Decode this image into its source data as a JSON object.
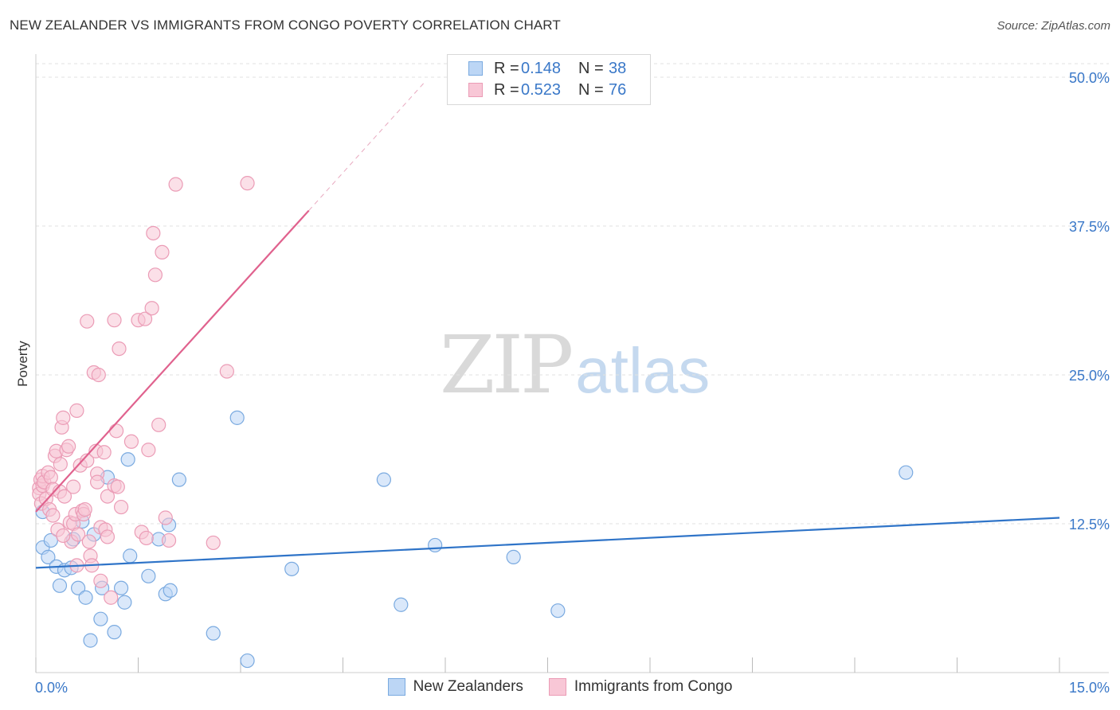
{
  "title": "NEW ZEALANDER VS IMMIGRANTS FROM CONGO POVERTY CORRELATION CHART",
  "source": "Source: ZipAtlas.com",
  "watermark": {
    "left": "ZIP",
    "right": "atlas"
  },
  "legend_top": {
    "rows": [
      {
        "r_label": "R =",
        "r_value": "0.148",
        "n_label": "N =",
        "n_value": "38"
      },
      {
        "r_label": "R =",
        "r_value": "0.523",
        "n_label": "N =",
        "n_value": "76"
      }
    ]
  },
  "legend_bottom": [
    "New Zealanders",
    "Immigrants from Congo"
  ],
  "colors": {
    "blue_fill": "#bcd6f5",
    "blue_stroke": "#7aaae0",
    "blue_line": "#2f74c8",
    "pink_fill": "#f8c7d6",
    "pink_stroke": "#eb9cb6",
    "pink_line": "#e0628e",
    "grid": "#e2e2e2",
    "tick_label": "#3a78c8"
  },
  "chart_data": {
    "type": "scatter",
    "title": "NEW ZEALANDER VS IMMIGRANTS FROM CONGO POVERTY CORRELATION CHART",
    "xlabel": "",
    "ylabel": "Poverty",
    "xlim": [
      0,
      15
    ],
    "ylim": [
      0,
      50
    ],
    "x_tick_labels": [
      "0.0%",
      "15.0%"
    ],
    "y_ticks": [
      12.5,
      25.0,
      37.5,
      50.0
    ],
    "y_tick_labels": [
      "12.5%",
      "25.0%",
      "37.5%",
      "50.0%"
    ],
    "grid": true,
    "legend_position": "bottom",
    "series": [
      {
        "name": "New Zealanders",
        "R": 0.148,
        "N": 38,
        "trend": {
          "x": [
            0,
            15
          ],
          "y": [
            8.8,
            13.0
          ]
        },
        "points": [
          [
            0.1,
            13.5
          ],
          [
            0.1,
            10.5
          ],
          [
            0.18,
            9.7
          ],
          [
            0.22,
            11.1
          ],
          [
            0.3,
            8.9
          ],
          [
            0.35,
            7.3
          ],
          [
            0.42,
            8.6
          ],
          [
            0.52,
            8.8
          ],
          [
            0.55,
            11.2
          ],
          [
            0.62,
            7.1
          ],
          [
            0.68,
            12.7
          ],
          [
            0.73,
            6.3
          ],
          [
            0.8,
            2.7
          ],
          [
            0.85,
            11.6
          ],
          [
            0.95,
            4.5
          ],
          [
            0.97,
            7.1
          ],
          [
            1.05,
            16.4
          ],
          [
            1.15,
            3.4
          ],
          [
            1.25,
            7.1
          ],
          [
            1.3,
            5.9
          ],
          [
            1.35,
            17.9
          ],
          [
            1.38,
            9.8
          ],
          [
            1.65,
            8.1
          ],
          [
            1.8,
            11.2
          ],
          [
            1.9,
            6.6
          ],
          [
            1.95,
            12.4
          ],
          [
            1.97,
            6.9
          ],
          [
            2.1,
            16.2
          ],
          [
            2.6,
            3.3
          ],
          [
            2.95,
            21.4
          ],
          [
            3.1,
            1.0
          ],
          [
            3.75,
            8.7
          ],
          [
            5.1,
            16.2
          ],
          [
            5.35,
            5.7
          ],
          [
            5.85,
            10.7
          ],
          [
            7.0,
            9.7
          ],
          [
            7.65,
            5.2
          ],
          [
            12.75,
            16.8
          ]
        ]
      },
      {
        "name": "Immigrants from Congo",
        "R": 0.523,
        "N": 76,
        "trend": {
          "x": [
            0,
            4.0
          ],
          "y": [
            13.5,
            38.8
          ]
        },
        "trend_dashed": {
          "x": [
            4.0,
            5.7
          ],
          "y": [
            38.8,
            49.6
          ]
        },
        "points": [
          [
            0.05,
            15.5
          ],
          [
            0.05,
            15.0
          ],
          [
            0.07,
            16.2
          ],
          [
            0.08,
            14.2
          ],
          [
            0.1,
            15.7
          ],
          [
            0.1,
            16.5
          ],
          [
            0.12,
            16.0
          ],
          [
            0.15,
            14.6
          ],
          [
            0.18,
            16.8
          ],
          [
            0.2,
            13.7
          ],
          [
            0.22,
            16.4
          ],
          [
            0.25,
            13.2
          ],
          [
            0.25,
            15.4
          ],
          [
            0.28,
            18.2
          ],
          [
            0.3,
            18.6
          ],
          [
            0.32,
            12.0
          ],
          [
            0.35,
            15.2
          ],
          [
            0.36,
            17.5
          ],
          [
            0.38,
            20.6
          ],
          [
            0.4,
            21.4
          ],
          [
            0.42,
            14.8
          ],
          [
            0.45,
            18.7
          ],
          [
            0.48,
            19.0
          ],
          [
            0.5,
            12.6
          ],
          [
            0.52,
            11.0
          ],
          [
            0.55,
            12.5
          ],
          [
            0.55,
            15.6
          ],
          [
            0.58,
            13.3
          ],
          [
            0.6,
            22.0
          ],
          [
            0.6,
            9.0
          ],
          [
            0.62,
            11.6
          ],
          [
            0.65,
            17.4
          ],
          [
            0.68,
            13.6
          ],
          [
            0.7,
            13.3
          ],
          [
            0.72,
            13.7
          ],
          [
            0.75,
            29.5
          ],
          [
            0.75,
            17.8
          ],
          [
            0.78,
            11.0
          ],
          [
            0.8,
            9.8
          ],
          [
            0.82,
            9.0
          ],
          [
            0.85,
            25.2
          ],
          [
            0.88,
            18.6
          ],
          [
            0.9,
            16.7
          ],
          [
            0.9,
            16.0
          ],
          [
            0.92,
            25.0
          ],
          [
            0.95,
            7.7
          ],
          [
            0.95,
            12.2
          ],
          [
            1.0,
            18.5
          ],
          [
            1.02,
            12.0
          ],
          [
            1.05,
            11.4
          ],
          [
            1.05,
            14.8
          ],
          [
            1.1,
            6.3
          ],
          [
            1.15,
            15.7
          ],
          [
            1.15,
            29.6
          ],
          [
            1.18,
            20.3
          ],
          [
            1.2,
            15.6
          ],
          [
            1.22,
            27.2
          ],
          [
            1.25,
            13.9
          ],
          [
            1.4,
            19.4
          ],
          [
            1.5,
            29.6
          ],
          [
            1.55,
            11.8
          ],
          [
            1.6,
            29.7
          ],
          [
            1.62,
            11.3
          ],
          [
            1.65,
            18.7
          ],
          [
            1.7,
            30.6
          ],
          [
            1.72,
            36.9
          ],
          [
            1.75,
            33.4
          ],
          [
            1.8,
            20.8
          ],
          [
            1.85,
            35.3
          ],
          [
            1.9,
            13.0
          ],
          [
            1.95,
            11.1
          ],
          [
            2.05,
            41.0
          ],
          [
            2.6,
            10.9
          ],
          [
            2.8,
            25.3
          ],
          [
            3.1,
            41.1
          ],
          [
            0.4,
            11.5
          ]
        ]
      }
    ]
  }
}
